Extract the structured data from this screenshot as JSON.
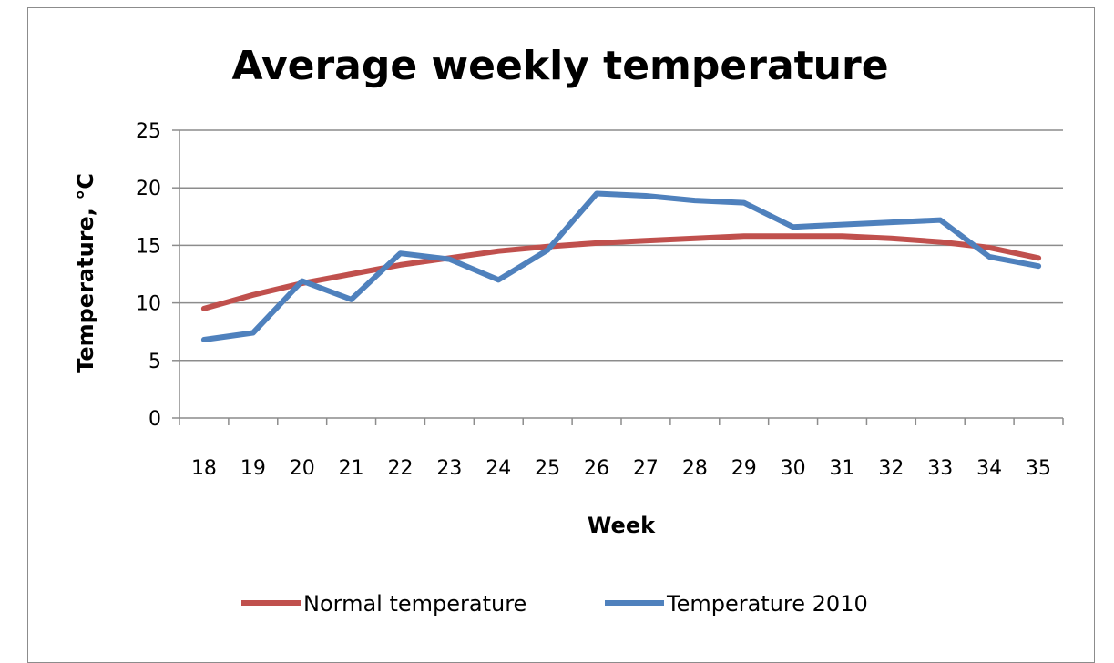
{
  "chart_data": {
    "type": "line",
    "title": "Average weekly temperature",
    "xlabel": "Week",
    "ylabel": "Temperature, °C",
    "categories": [
      "18",
      "19",
      "20",
      "21",
      "22",
      "23",
      "24",
      "25",
      "26",
      "27",
      "28",
      "29",
      "30",
      "31",
      "32",
      "33",
      "34",
      "35"
    ],
    "ylim": [
      0,
      25
    ],
    "yticks": [
      0,
      5,
      10,
      15,
      20,
      25
    ],
    "grid": true,
    "legend_position": "bottom",
    "series": [
      {
        "name": "Normal temperature",
        "color": "#c0504d",
        "values": [
          9.5,
          10.7,
          11.7,
          12.5,
          13.3,
          13.9,
          14.5,
          14.9,
          15.2,
          15.4,
          15.6,
          15.8,
          15.8,
          15.8,
          15.6,
          15.3,
          14.8,
          13.9
        ]
      },
      {
        "name": "Temperature 2010",
        "color": "#4f81bd",
        "values": [
          6.8,
          7.4,
          11.9,
          10.3,
          14.3,
          13.8,
          12.0,
          14.6,
          19.5,
          19.3,
          18.9,
          18.7,
          16.6,
          16.8,
          17.0,
          17.2,
          14.0,
          13.2
        ]
      }
    ]
  }
}
